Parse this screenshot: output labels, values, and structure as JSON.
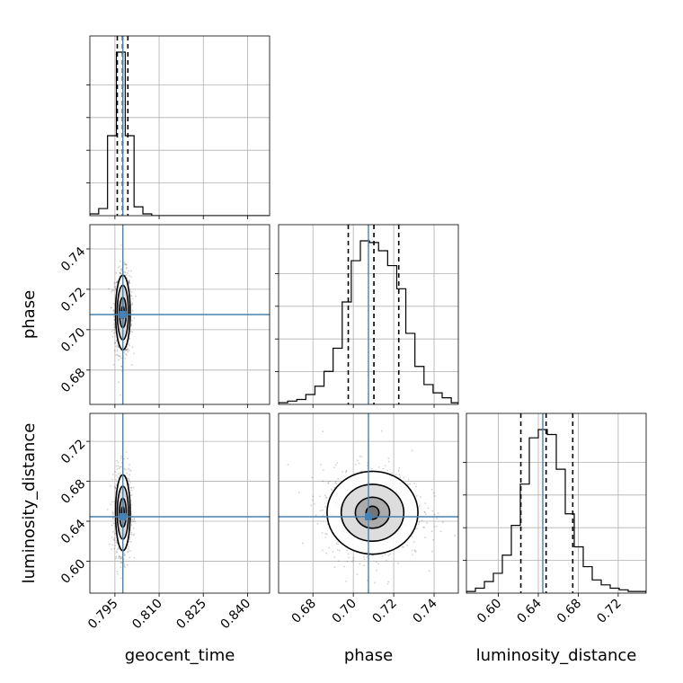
{
  "chart_data": {
    "type": "corner",
    "parameters": [
      {
        "name": "geocent_time",
        "label": "geocent_time",
        "range": [
          0.7865,
          0.8475
        ],
        "ticks": [
          0.795,
          0.81,
          0.825,
          0.84
        ],
        "tick_labels": [
          "0.795",
          "0.810",
          "0.825",
          "0.840"
        ],
        "truth": 0.7977,
        "quantiles": [
          0.7958,
          0.7976,
          0.7994
        ],
        "hist_edges": [
          0.7865,
          0.7895,
          0.7925,
          0.7955,
          0.7985,
          0.8015,
          0.8045,
          0.8075,
          0.8105,
          0.8135,
          0.8165,
          0.8195,
          0.8225,
          0.8255,
          0.8285,
          0.8315,
          0.8345,
          0.8375,
          0.8405,
          0.8435,
          0.8475
        ],
        "hist_counts": [
          1,
          4,
          45,
          92,
          45,
          5,
          1,
          0,
          0,
          0,
          0,
          0,
          0,
          0,
          0,
          0,
          0,
          0,
          0,
          0
        ]
      },
      {
        "name": "phase",
        "label": "phase",
        "range": [
          0.663,
          0.752
        ],
        "ticks": [
          0.68,
          0.7,
          0.72,
          0.74
        ],
        "tick_labels": [
          "0.68",
          "0.70",
          "0.72",
          "0.74"
        ],
        "truth": 0.7075,
        "quantiles": [
          0.6975,
          0.7102,
          0.7225
        ],
        "hist_edges": [
          0.663,
          0.6675,
          0.672,
          0.6765,
          0.681,
          0.6855,
          0.69,
          0.6945,
          0.699,
          0.7035,
          0.708,
          0.7125,
          0.717,
          0.7215,
          0.726,
          0.7305,
          0.735,
          0.7395,
          0.744,
          0.7485,
          0.752
        ],
        "hist_counts": [
          1,
          2,
          3,
          6,
          11,
          20,
          34,
          62,
          87,
          99,
          98,
          93,
          84,
          70,
          43,
          23,
          12,
          7,
          4,
          1
        ]
      },
      {
        "name": "luminosity_distance",
        "label": "luminosity_distance",
        "range": [
          0.568,
          0.748
        ],
        "ticks": [
          0.6,
          0.64,
          0.68,
          0.72
        ],
        "tick_labels": [
          "0.60",
          "0.64",
          "0.68",
          "0.72"
        ],
        "truth": 0.6445,
        "quantiles": [
          0.6225,
          0.6478,
          0.6745
        ],
        "hist_edges": [
          0.568,
          0.577,
          0.586,
          0.595,
          0.604,
          0.613,
          0.622,
          0.631,
          0.64,
          0.649,
          0.658,
          0.667,
          0.676,
          0.685,
          0.694,
          0.703,
          0.712,
          0.721,
          0.73,
          0.739,
          0.748
        ],
        "hist_counts": [
          1,
          3,
          7,
          12,
          23,
          41,
          66,
          94,
          99,
          96,
          75,
          48,
          28,
          16,
          8,
          5,
          3,
          2,
          1,
          1
        ]
      }
    ],
    "pairs": [
      {
        "x": "geocent_time",
        "y": "phase",
        "center": [
          0.7977,
          0.7085
        ],
        "contours": [
          {
            "sx": 0.00045,
            "sy": 0.003
          },
          {
            "sx": 0.00115,
            "sy": 0.0075
          },
          {
            "sx": 0.0019,
            "sy": 0.0135
          },
          {
            "sx": 0.0025,
            "sy": 0.0185
          }
        ]
      },
      {
        "x": "geocent_time",
        "y": "luminosity_distance",
        "center": [
          0.7977,
          0.6485
        ],
        "contours": [
          {
            "sx": 0.00045,
            "sy": 0.006
          },
          {
            "sx": 0.00115,
            "sy": 0.0145
          },
          {
            "sx": 0.0019,
            "sy": 0.0265
          },
          {
            "sx": 0.0025,
            "sy": 0.038
          }
        ]
      },
      {
        "x": "phase",
        "y": "luminosity_distance",
        "center": [
          0.7095,
          0.6485
        ],
        "contours": [
          {
            "sx": 0.0032,
            "sy": 0.0065
          },
          {
            "sx": 0.0085,
            "sy": 0.0155
          },
          {
            "sx": 0.0155,
            "sy": 0.0285
          },
          {
            "sx": 0.0225,
            "sy": 0.0415
          }
        ]
      }
    ],
    "grid": true,
    "truth_color": "#4682b4",
    "contour_color": "#000000"
  }
}
